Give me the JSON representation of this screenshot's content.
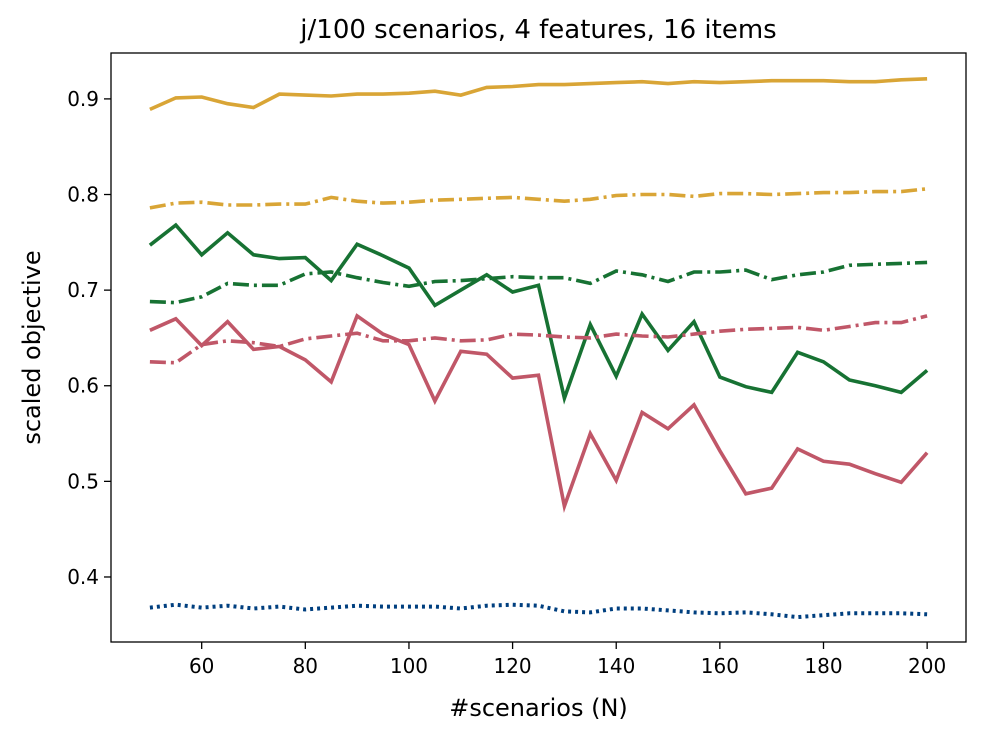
{
  "chart_data": {
    "type": "line",
    "title": "j/100 scenarios, 4 features, 16 items",
    "xlabel": "#scenarios (N)",
    "ylabel": "scaled objective",
    "xlim": [
      42.5,
      207.5
    ],
    "ylim": [
      0.332,
      0.948
    ],
    "x_ticks": [
      60,
      80,
      100,
      120,
      140,
      160,
      180,
      200
    ],
    "y_ticks": [
      0.4,
      0.5,
      0.6,
      0.7,
      0.8,
      0.9
    ],
    "grid": false,
    "legend": "none",
    "x": [
      50,
      55,
      60,
      65,
      70,
      75,
      80,
      85,
      90,
      95,
      100,
      105,
      110,
      115,
      120,
      125,
      130,
      135,
      140,
      145,
      150,
      155,
      160,
      165,
      170,
      175,
      180,
      185,
      190,
      195,
      200
    ],
    "series": [
      {
        "color": "#D9A536",
        "style": "solid",
        "values": [
          0.889,
          0.901,
          0.902,
          0.895,
          0.891,
          0.905,
          0.904,
          0.903,
          0.905,
          0.905,
          0.906,
          0.908,
          0.904,
          0.912,
          0.913,
          0.915,
          0.915,
          0.916,
          0.917,
          0.918,
          0.916,
          0.918,
          0.917,
          0.918,
          0.919,
          0.919,
          0.919,
          0.918,
          0.918,
          0.92,
          0.921
        ]
      },
      {
        "color": "#D9A536",
        "style": "dashdot",
        "values": [
          0.786,
          0.791,
          0.792,
          0.789,
          0.789,
          0.79,
          0.79,
          0.797,
          0.793,
          0.791,
          0.792,
          0.794,
          0.795,
          0.796,
          0.797,
          0.795,
          0.793,
          0.795,
          0.799,
          0.8,
          0.8,
          0.798,
          0.801,
          0.801,
          0.8,
          0.801,
          0.802,
          0.802,
          0.803,
          0.803,
          0.806
        ]
      },
      {
        "color": "#177233",
        "style": "solid",
        "values": [
          0.747,
          0.768,
          0.737,
          0.76,
          0.737,
          0.733,
          0.734,
          0.71,
          0.748,
          0.736,
          0.723,
          0.684,
          0.7,
          0.716,
          0.698,
          0.705,
          0.587,
          0.664,
          0.61,
          0.675,
          0.637,
          0.667,
          0.609,
          0.599,
          0.593,
          0.635,
          0.625,
          0.606,
          0.6,
          0.593,
          0.616
        ]
      },
      {
        "color": "#177233",
        "style": "dashdot",
        "values": [
          0.688,
          0.687,
          0.693,
          0.707,
          0.705,
          0.705,
          0.717,
          0.719,
          0.713,
          0.708,
          0.704,
          0.709,
          0.71,
          0.712,
          0.714,
          0.713,
          0.713,
          0.707,
          0.72,
          0.716,
          0.709,
          0.719,
          0.719,
          0.721,
          0.711,
          0.716,
          0.719,
          0.726,
          0.727,
          0.728,
          0.729
        ]
      },
      {
        "color": "#C05768",
        "style": "solid",
        "values": [
          0.658,
          0.67,
          0.642,
          0.667,
          0.638,
          0.641,
          0.627,
          0.604,
          0.673,
          0.654,
          0.643,
          0.584,
          0.636,
          0.633,
          0.608,
          0.611,
          0.474,
          0.55,
          0.501,
          0.572,
          0.555,
          0.58,
          0.532,
          0.487,
          0.493,
          0.534,
          0.521,
          0.518,
          0.508,
          0.499,
          0.53
        ]
      },
      {
        "color": "#C05768",
        "style": "dashdot",
        "values": [
          0.625,
          0.624,
          0.643,
          0.647,
          0.645,
          0.641,
          0.649,
          0.652,
          0.655,
          0.647,
          0.647,
          0.65,
          0.647,
          0.648,
          0.654,
          0.653,
          0.651,
          0.65,
          0.654,
          0.652,
          0.651,
          0.654,
          0.657,
          0.659,
          0.66,
          0.661,
          0.658,
          0.662,
          0.666,
          0.666,
          0.673
        ]
      },
      {
        "color": "#003F7F",
        "style": "dotted",
        "values": [
          0.368,
          0.371,
          0.368,
          0.37,
          0.367,
          0.369,
          0.366,
          0.368,
          0.37,
          0.369,
          0.369,
          0.369,
          0.367,
          0.37,
          0.371,
          0.37,
          0.364,
          0.363,
          0.367,
          0.367,
          0.365,
          0.363,
          0.362,
          0.363,
          0.361,
          0.358,
          0.36,
          0.362,
          0.362,
          0.362,
          0.361
        ]
      }
    ]
  }
}
